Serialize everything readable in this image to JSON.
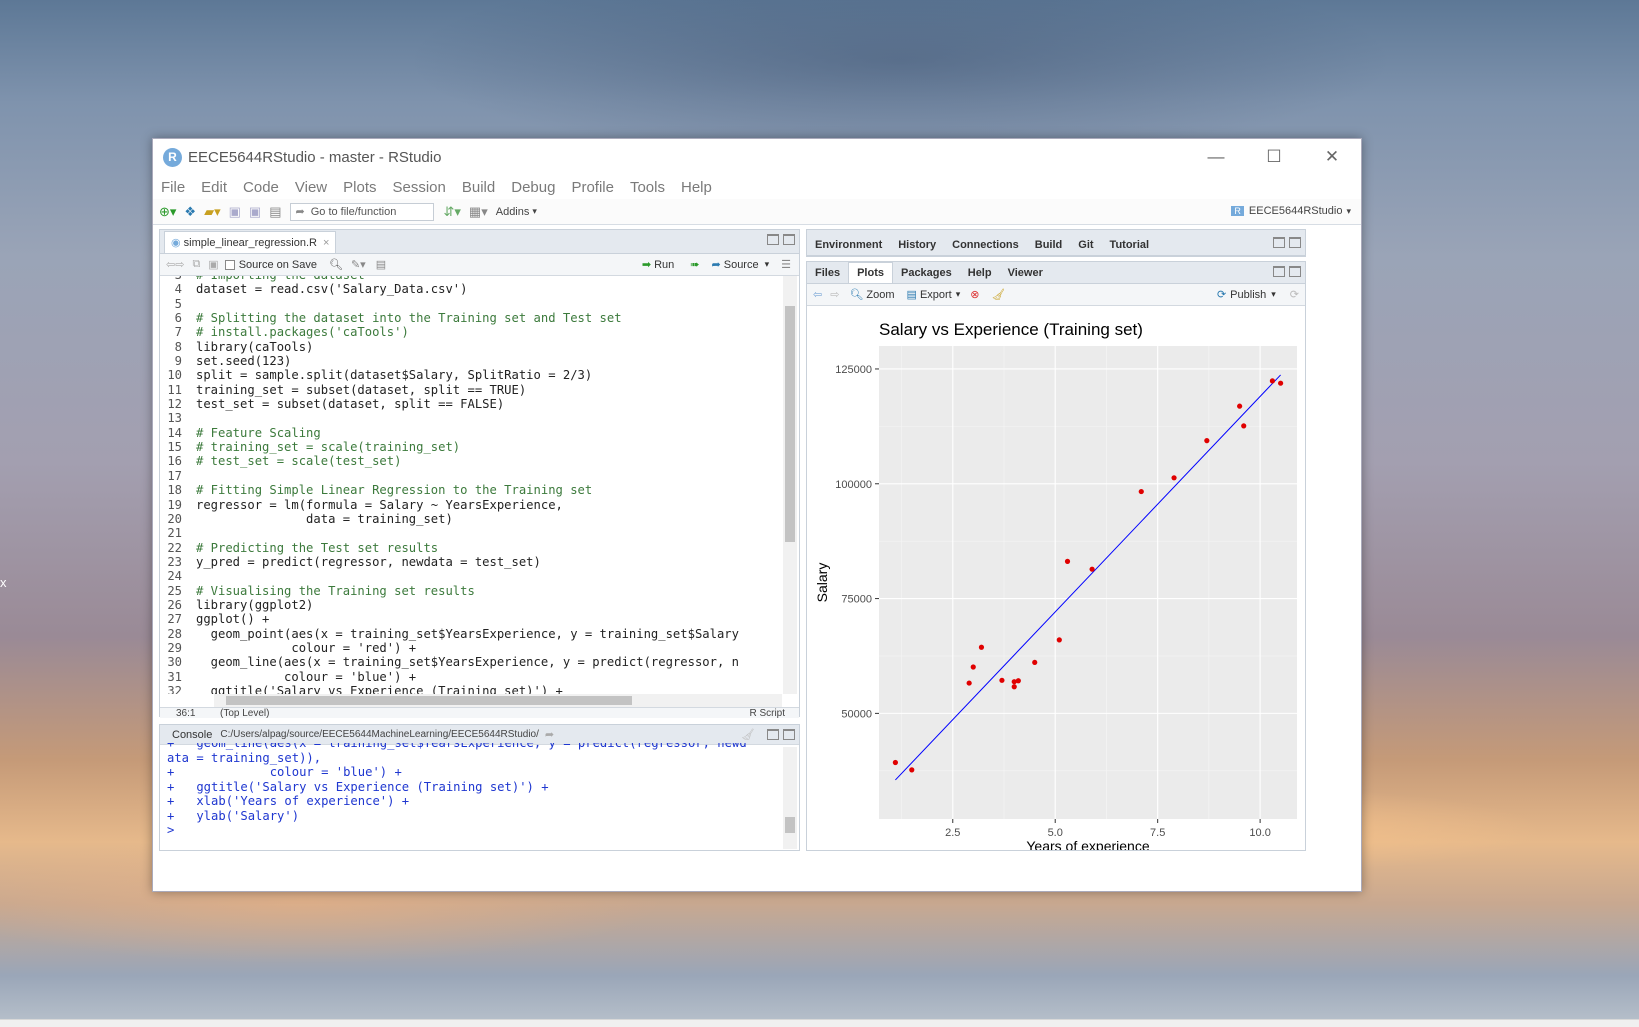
{
  "window": {
    "title": "EECE5644RStudio - master - RStudio",
    "minimize": "—",
    "maximize": "☐",
    "close": "✕"
  },
  "menu": [
    "File",
    "Edit",
    "Code",
    "View",
    "Plots",
    "Session",
    "Build",
    "Debug",
    "Profile",
    "Tools",
    "Help"
  ],
  "toolbar": {
    "goto_placeholder": "Go to file/function",
    "addins_label": "Addins",
    "project_label": "EECE5644RStudio"
  },
  "editor": {
    "tab_label": "simple_linear_regression.R",
    "source_on_save": "Source on Save",
    "run_label": "Run",
    "source_label": "Source",
    "status_position": "36:1",
    "status_scope": "(Top Level)",
    "status_type": "R Script",
    "lines": [
      {
        "n": "3",
        "t": "# Importing the dataset"
      },
      {
        "n": "4",
        "t": "dataset = read.csv('Salary_Data.csv')"
      },
      {
        "n": "5",
        "t": ""
      },
      {
        "n": "6",
        "t": "# Splitting the dataset into the Training set and Test set"
      },
      {
        "n": "7",
        "t": "# install.packages('caTools')"
      },
      {
        "n": "8",
        "t": "library(caTools)"
      },
      {
        "n": "9",
        "t": "set.seed(123)"
      },
      {
        "n": "10",
        "t": "split = sample.split(dataset$Salary, SplitRatio = 2/3)"
      },
      {
        "n": "11",
        "t": "training_set = subset(dataset, split == TRUE)"
      },
      {
        "n": "12",
        "t": "test_set = subset(dataset, split == FALSE)"
      },
      {
        "n": "13",
        "t": ""
      },
      {
        "n": "14",
        "t": "# Feature Scaling"
      },
      {
        "n": "15",
        "t": "# training_set = scale(training_set)"
      },
      {
        "n": "16",
        "t": "# test_set = scale(test_set)"
      },
      {
        "n": "17",
        "t": ""
      },
      {
        "n": "18",
        "t": "# Fitting Simple Linear Regression to the Training set"
      },
      {
        "n": "19",
        "t": "regressor = lm(formula = Salary ~ YearsExperience,"
      },
      {
        "n": "20",
        "t": "               data = training_set)"
      },
      {
        "n": "21",
        "t": ""
      },
      {
        "n": "22",
        "t": "# Predicting the Test set results"
      },
      {
        "n": "23",
        "t": "y_pred = predict(regressor, newdata = test_set)"
      },
      {
        "n": "24",
        "t": ""
      },
      {
        "n": "25",
        "t": "# Visualising the Training set results"
      },
      {
        "n": "26",
        "t": "library(ggplot2)"
      },
      {
        "n": "27",
        "t": "ggplot() +"
      },
      {
        "n": "28",
        "t": "  geom_point(aes(x = training_set$YearsExperience, y = training_set$Salary"
      },
      {
        "n": "29",
        "t": "             colour = 'red') +"
      },
      {
        "n": "30",
        "t": "  geom_line(aes(x = training_set$YearsExperience, y = predict(regressor, n"
      },
      {
        "n": "31",
        "t": "            colour = 'blue') +"
      },
      {
        "n": "32",
        "t": "  ggtitle('Salary vs Experience (Training set)') +"
      }
    ]
  },
  "console": {
    "tab_label": "Console",
    "path": "C:/Users/alpag/source/EECE5644MachineLearning/EECE5644RStudio/",
    "lines": [
      "+   geom_line(aes(x = training_set$YearsExperience, y = predict(regressor, newd",
      "ata = training_set)),",
      "+             colour = 'blue') +",
      "+   ggtitle('Salary vs Experience (Training set)') +",
      "+   xlab('Years of experience') +",
      "+   ylab('Salary')",
      "> "
    ]
  },
  "env_pane": {
    "tabs": [
      "Environment",
      "History",
      "Connections",
      "Build",
      "Git",
      "Tutorial"
    ]
  },
  "files_pane": {
    "tabs": [
      "Files",
      "Plots",
      "Packages",
      "Help",
      "Viewer"
    ],
    "zoom_label": "Zoom",
    "export_label": "Export",
    "publish_label": "Publish"
  },
  "chart_data": {
    "type": "scatter",
    "title": "Salary vs Experience (Training set)",
    "xlabel": "Years of experience",
    "ylabel": "Salary",
    "xlim": [
      0.7,
      10.9
    ],
    "ylim": [
      27000,
      130000
    ],
    "xticks": [
      2.5,
      5.0,
      7.5,
      10.0
    ],
    "xtick_labels": [
      "2.5",
      "5.0",
      "7.5",
      "10.0"
    ],
    "yticks": [
      50000,
      75000,
      100000,
      125000
    ],
    "ytick_labels": [
      "50000",
      "75000",
      "100000",
      "125000"
    ],
    "point_color": "#e00000",
    "line_color": "#0000ff",
    "panel_bg": "#ebebeb",
    "points": [
      [
        1.1,
        39300
      ],
      [
        1.5,
        37700
      ],
      [
        2.9,
        56600
      ],
      [
        3.0,
        60100
      ],
      [
        3.2,
        64400
      ],
      [
        3.7,
        57200
      ],
      [
        4.0,
        55800
      ],
      [
        4.0,
        56900
      ],
      [
        4.1,
        57100
      ],
      [
        4.5,
        61100
      ],
      [
        5.1,
        66000
      ],
      [
        5.3,
        83100
      ],
      [
        5.9,
        81400
      ],
      [
        7.1,
        98300
      ],
      [
        7.9,
        101300
      ],
      [
        8.7,
        109400
      ],
      [
        9.5,
        116900
      ],
      [
        9.6,
        112600
      ],
      [
        10.3,
        122400
      ],
      [
        10.5,
        121900
      ]
    ],
    "regression_line": [
      [
        1.1,
        35500
      ],
      [
        10.5,
        123700
      ]
    ]
  }
}
